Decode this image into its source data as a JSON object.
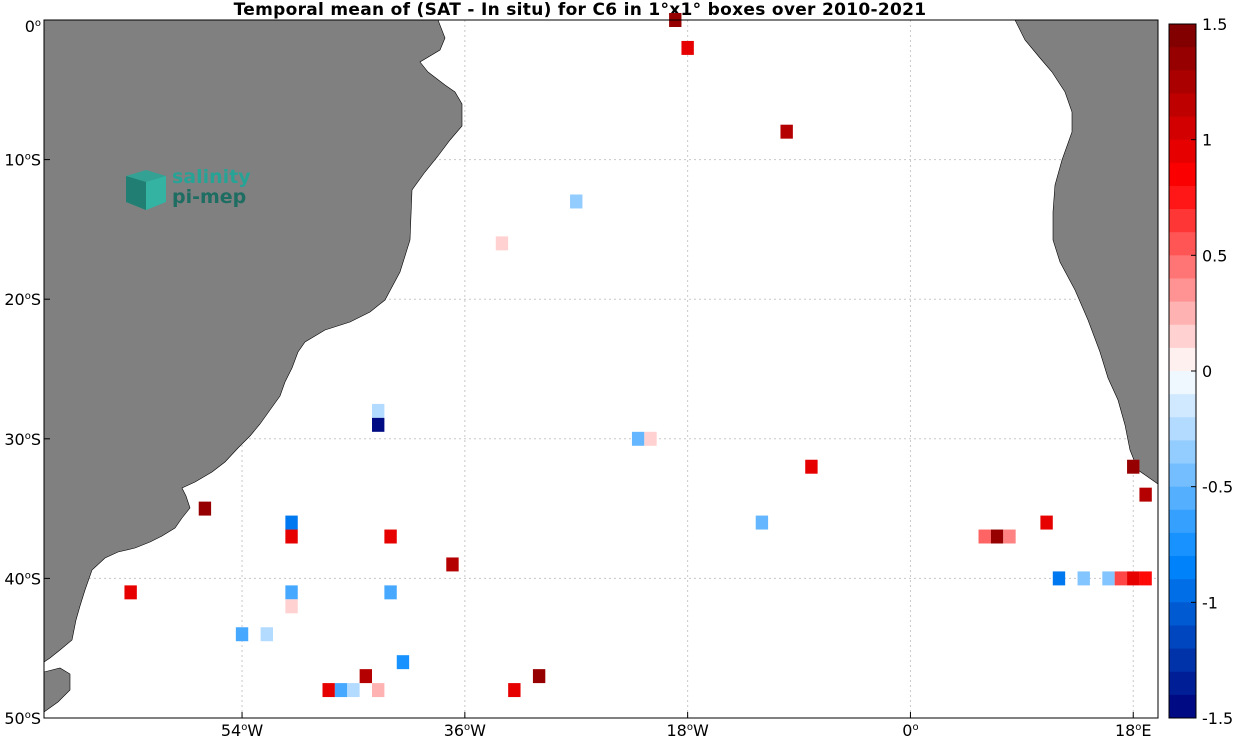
{
  "title": "Temporal mean of (SAT - In situ) for C6 in 1°x1° boxes over 2010-2021",
  "logo": {
    "line1": "salinity",
    "line2": "pi-mep"
  },
  "colors": {
    "land": "#808080",
    "background": "#ffffff",
    "grid": "#c8c8c8"
  },
  "y_ticks": [
    {
      "value": 0,
      "label": "0",
      "sup": "o"
    },
    {
      "value": -10,
      "label": "10",
      "sup": "o",
      "suffix": "S"
    },
    {
      "value": -20,
      "label": "20",
      "sup": "o",
      "suffix": "S"
    },
    {
      "value": -30,
      "label": "30",
      "sup": "o",
      "suffix": "S"
    },
    {
      "value": -40,
      "label": "40",
      "sup": "o",
      "suffix": "S"
    },
    {
      "value": -50,
      "label": "50",
      "sup": "o",
      "suffix": "S"
    }
  ],
  "x_ticks": [
    {
      "value": -54,
      "label": "54",
      "sup": "o",
      "suffix": "W"
    },
    {
      "value": -36,
      "label": "36",
      "sup": "o",
      "suffix": "W"
    },
    {
      "value": -18,
      "label": "18",
      "sup": "o",
      "suffix": "W"
    },
    {
      "value": 0,
      "label": "0",
      "sup": "o",
      "suffix": ""
    },
    {
      "value": 18,
      "label": "18",
      "sup": "o",
      "suffix": "E"
    }
  ],
  "colorbar": {
    "min": -1.5,
    "max": 1.5,
    "ticks": [
      {
        "value": 1.5,
        "label": "1.5"
      },
      {
        "value": 1,
        "label": "1"
      },
      {
        "value": 0.5,
        "label": "0.5"
      },
      {
        "value": 0,
        "label": "0"
      },
      {
        "value": -0.5,
        "label": "-0.5"
      },
      {
        "value": -1,
        "label": "-1"
      },
      {
        "value": -1.5,
        "label": "-1.5"
      }
    ]
  },
  "chart_data": {
    "type": "heatmap",
    "title": "Temporal mean of (SAT - In situ) for C6 in 1°x1° boxes over 2010-2021",
    "xlim": [
      -70,
      20
    ],
    "ylim": [
      -50,
      0
    ],
    "xlabel": "",
    "ylabel": "",
    "grid": true,
    "colorbar_range": [
      -1.5,
      1.5
    ],
    "cells": [
      {
        "lon": -19,
        "lat": 0,
        "value": 1.35
      },
      {
        "lon": -18,
        "lat": -2,
        "value": 0.95
      },
      {
        "lon": -10,
        "lat": -8,
        "value": 1.2
      },
      {
        "lon": -27,
        "lat": -13,
        "value": -0.35
      },
      {
        "lon": -33,
        "lat": -16,
        "value": 0.15
      },
      {
        "lon": -43,
        "lat": -28,
        "value": -0.25
      },
      {
        "lon": -43,
        "lat": -29,
        "value": -1.45
      },
      {
        "lon": -22,
        "lat": -30,
        "value": -0.5
      },
      {
        "lon": -21,
        "lat": -30,
        "value": 0.15
      },
      {
        "lon": -8,
        "lat": -32,
        "value": 0.95
      },
      {
        "lon": 18,
        "lat": -32,
        "value": 1.35
      },
      {
        "lon": 19,
        "lat": -34,
        "value": 1.2
      },
      {
        "lon": -57,
        "lat": -35,
        "value": 1.35
      },
      {
        "lon": -50,
        "lat": -36,
        "value": -0.9
      },
      {
        "lon": -50,
        "lat": -37,
        "value": 0.95
      },
      {
        "lon": -42,
        "lat": -37,
        "value": 0.95
      },
      {
        "lon": -12,
        "lat": -36,
        "value": -0.5
      },
      {
        "lon": 6,
        "lat": -37,
        "value": 0.5
      },
      {
        "lon": 7,
        "lat": -37,
        "value": 1.35
      },
      {
        "lon": 8,
        "lat": -37,
        "value": 0.4
      },
      {
        "lon": 11,
        "lat": -36,
        "value": 0.95
      },
      {
        "lon": -37,
        "lat": -39,
        "value": 1.2
      },
      {
        "lon": -63,
        "lat": -41,
        "value": 0.95
      },
      {
        "lon": -50,
        "lat": -41,
        "value": -0.6
      },
      {
        "lon": -42,
        "lat": -41,
        "value": -0.6
      },
      {
        "lon": -50,
        "lat": -42,
        "value": 0.15
      },
      {
        "lon": 12,
        "lat": -40,
        "value": -0.9
      },
      {
        "lon": 14,
        "lat": -40,
        "value": -0.4
      },
      {
        "lon": 16,
        "lat": -40,
        "value": -0.4
      },
      {
        "lon": 17,
        "lat": -40,
        "value": 0.6
      },
      {
        "lon": 18,
        "lat": -40,
        "value": 0.95
      },
      {
        "lon": 19,
        "lat": -40,
        "value": 0.8
      },
      {
        "lon": -54,
        "lat": -44,
        "value": -0.6
      },
      {
        "lon": -52,
        "lat": -44,
        "value": -0.25
      },
      {
        "lon": -41,
        "lat": -46,
        "value": -0.75
      },
      {
        "lon": -44,
        "lat": -47,
        "value": 1.2
      },
      {
        "lon": -30,
        "lat": -47,
        "value": 1.35
      },
      {
        "lon": -47,
        "lat": -48,
        "value": 0.95
      },
      {
        "lon": -46,
        "lat": -48,
        "value": -0.6
      },
      {
        "lon": -45,
        "lat": -48,
        "value": -0.25
      },
      {
        "lon": -43,
        "lat": -48,
        "value": 0.25
      },
      {
        "lon": -32,
        "lat": -48,
        "value": 0.95
      }
    ]
  }
}
